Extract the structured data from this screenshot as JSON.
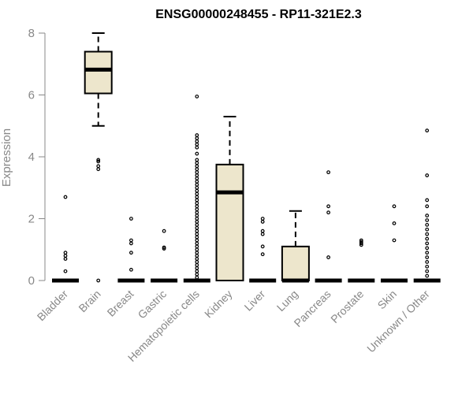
{
  "chart_data": {
    "type": "boxplot",
    "title": "ENSG00000248455 - RP11-321E2.3",
    "xlabel": "",
    "ylabel": "Expression",
    "ylim": [
      0,
      8
    ],
    "yticks": [
      0,
      2,
      4,
      6,
      8
    ],
    "grid": false,
    "box_fill": "#ede6cc",
    "categories": [
      "Bladder",
      "Brain",
      "Breast",
      "Gastric",
      "Hematopoietic cells",
      "Kidney",
      "Liver",
      "Lung",
      "Pancreas",
      "Prostate",
      "Skin",
      "Unknown / Other"
    ],
    "boxes": [
      {
        "q1": 0,
        "median": 0,
        "q3": 0,
        "whisker_low": 0,
        "whisker_high": 0,
        "outliers": [
          0.3,
          0.7,
          0.8,
          0.9,
          2.7
        ]
      },
      {
        "q1": 6.05,
        "median": 6.82,
        "q3": 7.4,
        "whisker_low": 5.0,
        "whisker_high": 8.0,
        "outliers": [
          0.0,
          3.6,
          3.7,
          3.85,
          3.9
        ]
      },
      {
        "q1": 0,
        "median": 0,
        "q3": 0,
        "whisker_low": 0,
        "whisker_high": 0,
        "outliers": [
          0.35,
          0.9,
          1.2,
          1.3,
          2.0
        ]
      },
      {
        "q1": 0,
        "median": 0,
        "q3": 0,
        "whisker_low": 0,
        "whisker_high": 0,
        "outliers": [
          1.03,
          1.07,
          1.6
        ]
      },
      {
        "q1": 0,
        "median": 0,
        "q3": 0,
        "whisker_low": 0,
        "whisker_high": 0,
        "outliers": [
          0.1,
          0.2,
          0.3,
          0.4,
          0.5,
          0.6,
          0.7,
          0.8,
          0.9,
          1.0,
          1.1,
          1.2,
          1.3,
          1.4,
          1.5,
          1.6,
          1.7,
          1.8,
          1.9,
          2.0,
          2.1,
          2.2,
          2.3,
          2.4,
          2.5,
          2.6,
          2.7,
          2.8,
          2.9,
          3.0,
          3.1,
          3.2,
          3.3,
          3.4,
          3.5,
          3.6,
          3.7,
          3.8,
          3.9,
          4.1,
          4.3,
          4.4,
          4.5,
          4.6,
          4.7,
          5.95
        ]
      },
      {
        "q1": 0,
        "median": 2.85,
        "q3": 3.75,
        "whisker_low": 0,
        "whisker_high": 5.3,
        "outliers": []
      },
      {
        "q1": 0,
        "median": 0,
        "q3": 0,
        "whisker_low": 0,
        "whisker_high": 0,
        "outliers": [
          0.85,
          1.1,
          1.5,
          1.6,
          1.9,
          2.0
        ]
      },
      {
        "q1": 0,
        "median": 0,
        "q3": 1.1,
        "whisker_low": 0,
        "whisker_high": 2.25,
        "outliers": []
      },
      {
        "q1": 0,
        "median": 0,
        "q3": 0,
        "whisker_low": 0,
        "whisker_high": 0,
        "outliers": [
          0.75,
          2.2,
          2.4,
          3.5
        ]
      },
      {
        "q1": 0,
        "median": 0,
        "q3": 0,
        "whisker_low": 0,
        "whisker_high": 0,
        "outliers": [
          1.15,
          1.2,
          1.25,
          1.3
        ]
      },
      {
        "q1": 0,
        "median": 0,
        "q3": 0,
        "whisker_low": 0,
        "whisker_high": 0,
        "outliers": [
          1.3,
          1.85,
          2.4
        ]
      },
      {
        "q1": 0,
        "median": 0,
        "q3": 0,
        "whisker_low": 0,
        "whisker_high": 0,
        "outliers": [
          0.15,
          0.3,
          0.45,
          0.6,
          0.75,
          0.9,
          1.05,
          1.2,
          1.35,
          1.5,
          1.65,
          1.8,
          1.95,
          2.1,
          2.4,
          2.6,
          3.4,
          4.85
        ]
      }
    ]
  }
}
